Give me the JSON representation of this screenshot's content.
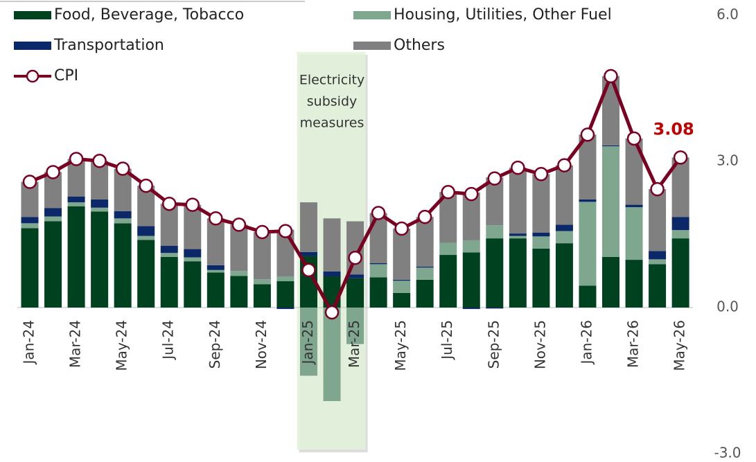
{
  "chart_data": {
    "type": "bar",
    "categories": [
      "Jan-24",
      null,
      "Mar-24",
      null,
      "May-24",
      null,
      "Jul-24",
      null,
      "Sep-24",
      null,
      "Nov-24",
      null,
      "Jan-25",
      null,
      "Mar-25",
      null,
      "May-25",
      null,
      "Jul-25",
      null,
      "Sep-25",
      null,
      "Nov-25",
      null,
      "Jan-26",
      null,
      "Mar-26",
      null,
      "May-26"
    ],
    "series": [
      {
        "name": "Food, Beverage, Tobacco",
        "type": "bar",
        "color": "#00421f",
        "values": [
          1.63,
          1.77,
          2.08,
          1.97,
          1.73,
          1.39,
          1.04,
          0.95,
          0.72,
          0.65,
          0.48,
          0.54,
          1.06,
          0.64,
          0.6,
          0.62,
          0.3,
          0.57,
          1.08,
          1.13,
          1.42,
          1.42,
          1.21,
          1.32,
          0.45,
          1.04,
          0.98,
          0.89,
          1.42
        ]
      },
      {
        "name": "Housing, Utilities,  Other Fuel",
        "type": "bar",
        "color": "#7fa68f",
        "values": [
          0.1,
          0.1,
          0.08,
          0.08,
          0.1,
          0.08,
          0.08,
          0.08,
          0.05,
          0.1,
          0.1,
          0.1,
          -1.4,
          -1.92,
          -0.75,
          0.27,
          0.25,
          0.25,
          0.25,
          0.25,
          0.27,
          0.05,
          0.25,
          0.25,
          1.72,
          2.27,
          1.08,
          0.1,
          0.17
        ]
      },
      {
        "name": "Transportation",
        "type": "bar",
        "color": "#0b2868",
        "values": [
          0.13,
          0.17,
          0.12,
          0.17,
          0.15,
          0.2,
          0.15,
          0.17,
          0.1,
          0,
          0,
          -0.03,
          0.08,
          0.1,
          0.08,
          0.02,
          0.02,
          0.02,
          0,
          -0.03,
          -0.02,
          0.05,
          0.08,
          0.13,
          0.05,
          0.02,
          0.05,
          0.17,
          0.27
        ]
      },
      {
        "name": "Others",
        "type": "bar",
        "color": "#808080",
        "values": [
          0.72,
          0.74,
          0.77,
          0.79,
          0.87,
          0.83,
          0.86,
          0.91,
          0.96,
          0.95,
          0.97,
          0.96,
          1.02,
          1.09,
          1.09,
          1.03,
          1.05,
          1.02,
          1.04,
          0.98,
          0.98,
          1.35,
          1.2,
          1.22,
          1.33,
          1.42,
          1.36,
          1.27,
          1.22
        ]
      },
      {
        "name": "CPI",
        "type": "line",
        "color": "#7a0022",
        "values": [
          2.58,
          2.78,
          3.05,
          3.01,
          2.85,
          2.5,
          2.13,
          2.11,
          1.83,
          1.7,
          1.55,
          1.57,
          0.77,
          -0.1,
          1.02,
          1.94,
          1.62,
          1.86,
          2.37,
          2.33,
          2.65,
          2.87,
          2.74,
          2.92,
          3.55,
          4.75,
          3.47,
          2.43,
          3.08
        ]
      }
    ],
    "annotation": [
      "Electricity",
      "subsidy",
      "measures"
    ],
    "ylim": [
      -3,
      6
    ],
    "yticks": [
      {
        "value": -3,
        "label": "-3.0"
      },
      {
        "value": 0,
        "label": "0.0"
      },
      {
        "value": 3,
        "label": "3.0"
      },
      {
        "value": 6,
        "label": "6.0"
      }
    ],
    "legend": "top-left"
  }
}
